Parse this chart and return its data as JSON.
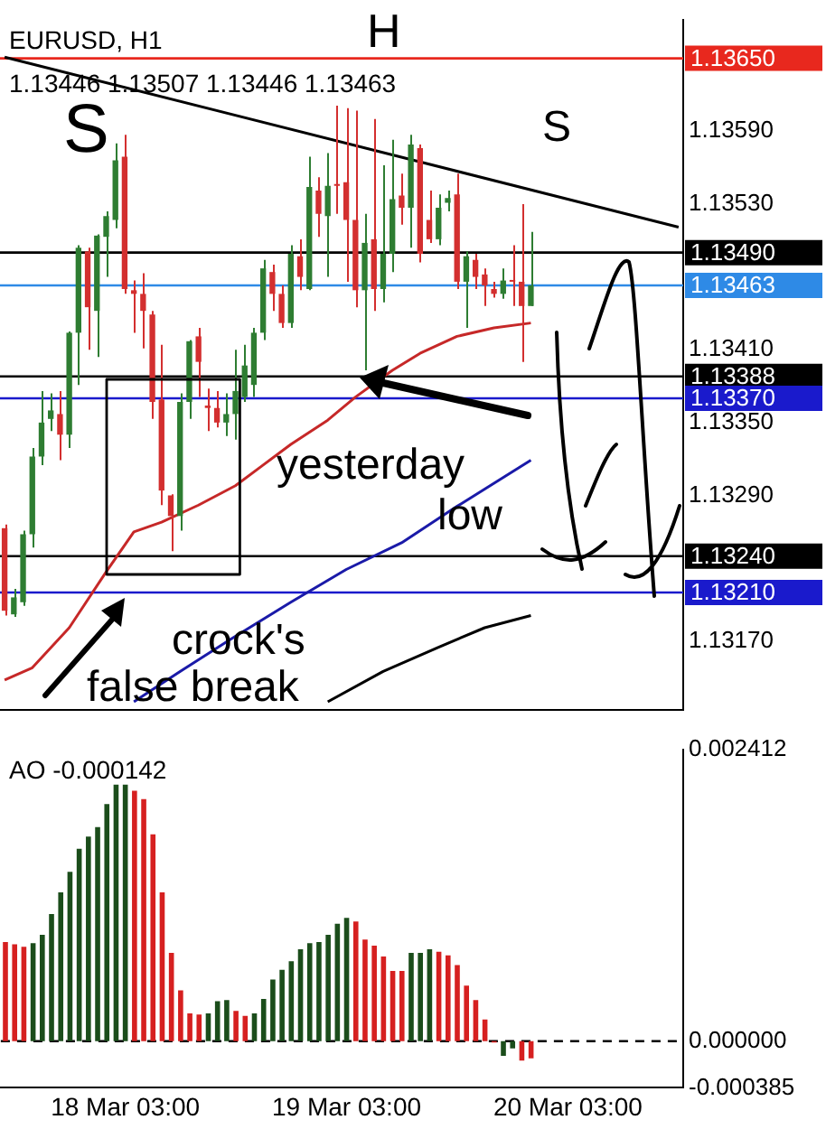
{
  "chart_data": [
    {
      "type": "candlestick",
      "title": "EURUSD, H1",
      "subtitle": "1.13446 1.13507 1.13446 1.13463",
      "categories": [
        null,
        null,
        null,
        null,
        null,
        null,
        null,
        null,
        null,
        null,
        null,
        null,
        null,
        null,
        null,
        null,
        null,
        null,
        null,
        null,
        null,
        null,
        null,
        null,
        null,
        null,
        null,
        null,
        null,
        null,
        null,
        null,
        null,
        null,
        null,
        null,
        null,
        null,
        null,
        null,
        null,
        null,
        null,
        null,
        null,
        null,
        null,
        null,
        null,
        null,
        null,
        null,
        null,
        null,
        null,
        null,
        null,
        null,
        null,
        null,
        null,
        null,
        null,
        null,
        null,
        null,
        null,
        null,
        null,
        null,
        null,
        null,
        null,
        null
      ],
      "ohlc": [
        [
          1.13263,
          1.13266,
          1.13191,
          1.13195
        ],
        [
          1.13192,
          1.13213,
          1.1319,
          1.13206
        ],
        [
          1.13202,
          1.13261,
          1.13199,
          1.13258
        ],
        [
          1.13258,
          1.13329,
          1.13247,
          1.13322
        ],
        [
          1.13322,
          1.13376,
          1.13315,
          1.1335
        ],
        [
          1.13353,
          1.13374,
          1.13343,
          1.1336
        ],
        [
          1.13357,
          1.13376,
          1.13319,
          1.1334
        ],
        [
          1.1334,
          1.13425,
          1.13329,
          1.13424
        ],
        [
          1.13424,
          1.13496,
          1.13381,
          1.13494
        ],
        [
          1.13491,
          1.13494,
          1.1341,
          1.13445
        ],
        [
          1.13442,
          1.13505,
          1.13404,
          1.13504
        ],
        [
          1.13503,
          1.13524,
          1.1347,
          1.1352
        ],
        [
          1.13517,
          1.1358,
          1.1351,
          1.13566
        ],
        [
          1.13569,
          1.13587,
          1.13456,
          1.1346
        ],
        [
          1.13459,
          1.13467,
          1.13424,
          1.13456
        ],
        [
          1.13456,
          1.13473,
          1.13411,
          1.13442
        ],
        [
          1.13439,
          1.13442,
          1.13353,
          1.13367
        ],
        [
          1.13369,
          1.13414,
          1.13282,
          1.13294
        ],
        [
          1.1329,
          1.13291,
          1.13244,
          1.13273
        ],
        [
          1.13273,
          1.13374,
          1.13261,
          1.13367
        ],
        [
          1.13367,
          1.13418,
          1.13353,
          1.13417
        ],
        [
          1.13421,
          1.13428,
          1.13371,
          1.134
        ],
        [
          1.13364,
          1.13378,
          1.13343,
          1.13362
        ],
        [
          1.13362,
          1.13376,
          1.13346,
          1.1335
        ],
        [
          1.1335,
          1.13374,
          1.13339,
          1.13357
        ],
        [
          1.13357,
          1.1341,
          1.13336,
          1.13376
        ],
        [
          1.13371,
          1.13414,
          1.13367,
          1.13397
        ],
        [
          1.13381,
          1.13428,
          1.13371,
          1.13424
        ],
        [
          1.13424,
          1.13484,
          1.13418,
          1.13477
        ],
        [
          1.13474,
          1.1348,
          1.13442,
          1.13456
        ],
        [
          1.13456,
          1.13463,
          1.13428,
          1.13432
        ],
        [
          1.13432,
          1.13496,
          1.13428,
          1.13489
        ],
        [
          1.13487,
          1.13501,
          1.13459,
          1.1347
        ],
        [
          1.1346,
          1.13569,
          1.13459,
          1.13544
        ],
        [
          1.13541,
          1.13552,
          1.13503,
          1.13522
        ],
        [
          1.1352,
          1.13572,
          1.1347,
          1.13545
        ],
        [
          1.13546,
          1.13611,
          1.13522,
          1.13545
        ],
        [
          1.13548,
          1.13609,
          1.13466,
          1.13517
        ],
        [
          1.13517,
          1.13607,
          1.13445,
          1.13459
        ],
        [
          1.13459,
          1.13522,
          1.13393,
          1.13498
        ],
        [
          1.13501,
          1.136,
          1.13442,
          1.1346
        ],
        [
          1.1346,
          1.13562,
          1.13449,
          1.13489
        ],
        [
          1.13489,
          1.13583,
          1.13474,
          1.13534
        ],
        [
          1.13537,
          1.13555,
          1.13513,
          1.13527
        ],
        [
          1.13527,
          1.13587,
          1.13494,
          1.13579
        ],
        [
          1.13576,
          1.13579,
          1.13482,
          1.13489
        ],
        [
          1.13517,
          1.13541,
          1.13498,
          1.13501
        ],
        [
          1.13501,
          1.13538,
          1.13496,
          1.13527
        ],
        [
          1.13531,
          1.13541,
          1.13524,
          1.13535
        ],
        [
          1.13538,
          1.13555,
          1.1346,
          1.13466
        ],
        [
          1.13466,
          1.13491,
          1.13428,
          1.13487
        ],
        [
          1.13484,
          1.13489,
          1.1346,
          1.1347
        ],
        [
          1.13472,
          1.13477,
          1.13446,
          1.13463
        ],
        [
          1.1346,
          1.13466,
          1.13453,
          1.13456
        ],
        [
          1.13456,
          1.13477,
          1.13452,
          1.13467
        ],
        [
          1.13467,
          1.13496,
          1.13446,
          1.13466
        ],
        [
          1.13466,
          1.1353,
          1.134,
          1.13446
        ],
        [
          1.13446,
          1.13507,
          1.13446,
          1.13463
        ],
        null,
        null,
        null,
        null,
        null,
        null,
        null,
        null,
        null,
        null,
        null,
        null,
        null,
        null,
        null,
        null
      ],
      "colors": [
        "#d32f2f",
        "#2e7d32",
        "#2e7d32",
        "#2e7d32",
        "#2e7d32",
        "#2e7d32",
        "#d32f2f",
        "#2e7d32",
        "#2e7d32",
        "#d32f2f",
        "#2e7d32",
        "#2e7d32",
        "#2e7d32",
        "#d32f2f",
        "#d32f2f",
        "#d32f2f",
        "#d32f2f",
        "#d32f2f",
        "#d32f2f",
        "#2e7d32",
        "#2e7d32",
        "#d32f2f",
        "#d32f2f",
        "#d32f2f",
        "#2e7d32",
        "#2e7d32",
        "#2e7d32",
        "#2e7d32",
        "#2e7d32",
        "#d32f2f",
        "#d32f2f",
        "#2e7d32",
        "#d32f2f",
        "#2e7d32",
        "#d32f2f",
        "#2e7d32",
        "#d32f2f",
        "#d32f2f",
        "#d32f2f",
        "#2e7d32",
        "#d32f2f",
        "#2e7d32",
        "#2e7d32",
        "#d32f2f",
        "#2e7d32",
        "#d32f2f",
        "#d32f2f",
        "#2e7d32",
        "#2e7d32",
        "#d32f2f",
        "#2e7d32",
        "#d32f2f",
        "#d32f2f",
        "#d32f2f",
        "#2e7d32",
        "#d32f2f",
        "#d32f2f",
        "#2e7d32",
        null,
        null,
        null,
        null,
        null,
        null,
        null,
        null,
        null,
        null,
        null,
        null,
        null,
        null,
        null,
        null
      ],
      "series": [
        {
          "type": "line",
          "color": "#c62828",
          "values": [
            1.13138,
            null,
            null,
            1.13148,
            null,
            null,
            null,
            1.13181,
            null,
            null,
            null,
            1.13227,
            null,
            null,
            1.1326,
            null,
            null,
            1.13268,
            null,
            null,
            null,
            1.13282,
            null,
            null,
            null,
            1.13298,
            null,
            null,
            1.13315,
            null,
            null,
            1.13332,
            null,
            null,
            null,
            1.13352,
            null,
            null,
            1.13371,
            null,
            null,
            null,
            1.13393,
            null,
            null,
            1.13407,
            null,
            null,
            null,
            1.13421,
            null,
            null,
            null,
            1.13428,
            null,
            null,
            null,
            1.13432,
            null,
            null,
            null,
            null,
            null,
            null,
            null,
            null,
            null,
            null,
            null,
            null,
            null,
            null,
            null,
            null
          ]
        },
        {
          "type": "line",
          "color": "#1a1aa8",
          "values": [
            null,
            null,
            null,
            null,
            null,
            null,
            null,
            null,
            null,
            null,
            null,
            null,
            null,
            null,
            1.1312,
            null,
            null,
            null,
            null,
            1.13145,
            null,
            null,
            null,
            null,
            null,
            1.13174,
            null,
            null,
            null,
            null,
            null,
            1.13202,
            null,
            null,
            null,
            null,
            null,
            1.13229,
            null,
            null,
            null,
            null,
            null,
            1.13251,
            null,
            null,
            null,
            null,
            null,
            1.13281,
            null,
            null,
            null,
            null,
            null,
            null,
            null,
            1.13319,
            null,
            null,
            null,
            null,
            null,
            null,
            null,
            null,
            null,
            null,
            null,
            null,
            null,
            null,
            null,
            null
          ]
        },
        {
          "type": "line",
          "color": "#000000",
          "values": [
            null,
            null,
            null,
            null,
            null,
            null,
            null,
            null,
            null,
            null,
            null,
            null,
            null,
            null,
            null,
            null,
            null,
            null,
            null,
            null,
            null,
            null,
            null,
            null,
            null,
            null,
            null,
            null,
            null,
            null,
            null,
            null,
            null,
            null,
            null,
            1.1312,
            null,
            null,
            null,
            null,
            null,
            1.13145,
            null,
            null,
            null,
            null,
            null,
            1.13165,
            null,
            null,
            null,
            null,
            1.13181,
            null,
            null,
            null,
            null,
            1.13191,
            null,
            null,
            null,
            null,
            null,
            null,
            null,
            null,
            null,
            null,
            null,
            null,
            null,
            null,
            null,
            null
          ]
        },
        {
          "type": "line",
          "color": "#000000",
          "values": [
            1.13651,
            null,
            null,
            null,
            null,
            null,
            null,
            null,
            null,
            null,
            null,
            null,
            null,
            null,
            null,
            null,
            null,
            null,
            null,
            null,
            null,
            null,
            null,
            null,
            null,
            null,
            null,
            null,
            null,
            null,
            null,
            null,
            null,
            null,
            null,
            null,
            null,
            null,
            null,
            null,
            null,
            null,
            null,
            null,
            null,
            null,
            null,
            null,
            null,
            null,
            null,
            null,
            null,
            null,
            null,
            null,
            null,
            null,
            null,
            null,
            null,
            null,
            null,
            null,
            null,
            null,
            null,
            null,
            null,
            null,
            null,
            null,
            null,
            1.13511
          ]
        }
      ],
      "ylim": [
        1.13113,
        1.13682
      ],
      "yticks": [
        {
          "value": 1.1359,
          "label": "1.13590"
        },
        {
          "value": 1.1353,
          "label": "1.13530"
        },
        {
          "value": 1.1341,
          "label": "1.13410"
        },
        {
          "value": 1.1335,
          "label": "1.13350"
        },
        {
          "value": 1.1329,
          "label": "1.13290"
        },
        {
          "value": 1.1317,
          "label": "1.13170"
        }
      ],
      "tick_labels": "y",
      "ref_lines": [
        {
          "axis": "y",
          "value": 1.1365,
          "label": "1.13650",
          "color": "#e8281e"
        },
        {
          "axis": "y",
          "value": 1.1349,
          "label": "1.13490",
          "color": "#000000"
        },
        {
          "axis": "y",
          "value": 1.13463,
          "label": "1.13463",
          "color": "#2e8ae6"
        },
        {
          "axis": "y",
          "value": 1.13388,
          "label": "1.13388",
          "color": "#000000"
        },
        {
          "axis": "y",
          "value": 1.1337,
          "label": "1.13370",
          "color": "#1a1acc"
        },
        {
          "axis": "y",
          "value": 1.1324,
          "label": "1.13240",
          "color": "#000000"
        },
        {
          "axis": "y",
          "value": 1.1321,
          "label": "1.13210",
          "color": "#1a1acc"
        }
      ],
      "annotations": [
        "S",
        "H",
        "S",
        "yesterday low",
        "crock's false break"
      ]
    },
    {
      "type": "bar",
      "title": "AO -0.000142",
      "categories": [
        null,
        null,
        null,
        null,
        null,
        null,
        null,
        null,
        null,
        null,
        null,
        null,
        null,
        "18 Mar 03:00",
        null,
        null,
        null,
        null,
        null,
        null,
        null,
        null,
        null,
        null,
        null,
        null,
        null,
        null,
        null,
        null,
        null,
        null,
        null,
        null,
        null,
        null,
        null,
        "19 Mar 03:00",
        null,
        null,
        null,
        null,
        null,
        null,
        null,
        null,
        null,
        null,
        null,
        null,
        null,
        null,
        null,
        null,
        null,
        null,
        null,
        null,
        null,
        null,
        null,
        "20 Mar 03:00",
        null,
        null,
        null,
        null,
        null,
        null,
        null,
        null,
        null,
        null,
        null,
        null
      ],
      "values": [
        0.00082,
        0.0008,
        0.00078,
        0.00081,
        0.00088,
        0.00105,
        0.00123,
        0.0014,
        0.00159,
        0.00169,
        0.00177,
        0.00196,
        0.00212,
        0.00212,
        0.00207,
        0.002,
        0.00171,
        0.00123,
        0.00073,
        0.00042,
        0.00023,
        0.00022,
        0.00023,
        0.00033,
        0.00034,
        0.00025,
        0.00021,
        0.00023,
        0.00035,
        0.00051,
        0.00059,
        0.00066,
        0.00076,
        0.00081,
        0.00082,
        0.00088,
        0.00097,
        0.00102,
        0.00099,
        0.00084,
        0.00079,
        0.0007,
        0.00058,
        0.00058,
        0.00073,
        0.00073,
        0.00076,
        0.00074,
        0.00071,
        0.00063,
        0.00046,
        0.00034,
        0.00018,
        -1e-05,
        -0.00012,
        -6e-05,
        -0.00016,
        -0.000142,
        null,
        null,
        null,
        null,
        null,
        null,
        null,
        null,
        null,
        null,
        null,
        null,
        null,
        null,
        null,
        null
      ],
      "colors": [
        "#d62020",
        "#d62020",
        "#d62020",
        "#1b4d1b",
        "#1b4d1b",
        "#1b4d1b",
        "#1b4d1b",
        "#1b4d1b",
        "#1b4d1b",
        "#1b4d1b",
        "#1b4d1b",
        "#1b4d1b",
        "#1b4d1b",
        "#1b4d1b",
        "#d62020",
        "#d62020",
        "#d62020",
        "#d62020",
        "#d62020",
        "#d62020",
        "#d62020",
        "#d62020",
        "#1b4d1b",
        "#1b4d1b",
        "#1b4d1b",
        "#d62020",
        "#d62020",
        "#1b4d1b",
        "#1b4d1b",
        "#1b4d1b",
        "#1b4d1b",
        "#1b4d1b",
        "#1b4d1b",
        "#1b4d1b",
        "#1b4d1b",
        "#1b4d1b",
        "#1b4d1b",
        "#1b4d1b",
        "#d62020",
        "#d62020",
        "#d62020",
        "#d62020",
        "#d62020",
        "#d62020",
        "#1b4d1b",
        "#1b4d1b",
        "#1b4d1b",
        "#d62020",
        "#d62020",
        "#d62020",
        "#d62020",
        "#d62020",
        "#d62020",
        "#d62020",
        "#1b4d1b",
        "#1b4d1b",
        "#d62020",
        "#d62020",
        null,
        null,
        null,
        null,
        null,
        null,
        null,
        null,
        null,
        null,
        null,
        null,
        null,
        null,
        null,
        null
      ],
      "ylim": [
        -0.000385,
        0.002412
      ],
      "yticks": [
        {
          "value": 0.002412,
          "label": "0.002412"
        },
        {
          "value": 0,
          "label": "0.000000"
        },
        {
          "value": -0.000385,
          "label": "-0.000385"
        }
      ],
      "ref_lines": [
        {
          "axis": "y",
          "value": 0,
          "color": "#000000",
          "line_style": "dashed"
        }
      ]
    }
  ]
}
